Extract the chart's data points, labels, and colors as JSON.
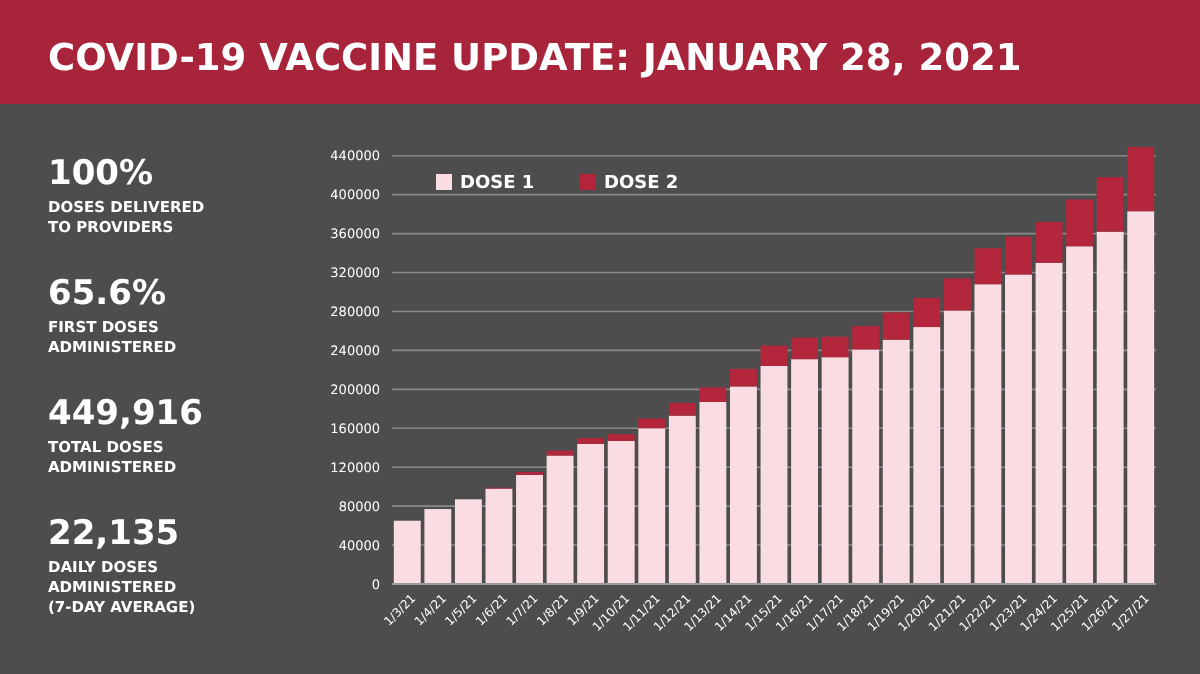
{
  "chart_data": {
    "type": "bar",
    "title": "COVID-19 VACCINE UPDATE: JANUARY 28, 2021",
    "annotations": [
      "100%",
      "DOSES DELIVERED TO PROVIDERS",
      "65.6%",
      "FIRST DOSES ADMINISTERED",
      "449,916",
      "TOTAL DOSES ADMINISTERED",
      "22,135",
      "DAILY DOSES ADMINISTERED (7-DAY AVERAGE)"
    ],
    "categories": [
      "1/3/21",
      "1/4/21",
      "1/5/21",
      "1/6/21",
      "1/7/21",
      "1/8/21",
      "1/9/21",
      "1/10/21",
      "1/11/21",
      "1/12/21",
      "1/13/21",
      "1/14/21",
      "1/15/21",
      "1/16/21",
      "1/17/21",
      "1/18/21",
      "1/19/21",
      "1/20/21",
      "1/21/21",
      "1/22/21",
      "1/23/21",
      "1/24/21",
      "1/25/21",
      "1/26/21",
      "1/27/21"
    ],
    "series": [
      {
        "name": "DOSE 1",
        "color": "#f9dde2",
        "values": [
          65000,
          77000,
          87000,
          98000,
          112000,
          132000,
          144000,
          147000,
          160000,
          173000,
          187000,
          203000,
          224000,
          231000,
          233000,
          241000,
          251000,
          264000,
          281000,
          308000,
          318000,
          330000,
          347000,
          362000,
          383000
        ]
      },
      {
        "name": "DOSE 2",
        "color": "#b3263c",
        "values": [
          0,
          0,
          0,
          1000,
          3000,
          5000,
          6000,
          7000,
          10000,
          13000,
          15000,
          18000,
          21000,
          22000,
          21000,
          24000,
          28000,
          30000,
          33000,
          37000,
          39000,
          42000,
          48000,
          56000,
          66000
        ]
      }
    ],
    "stacked": true,
    "ylim": [
      0,
      450000
    ],
    "yticks": [
      0,
      40000,
      80000,
      120000,
      160000,
      200000,
      240000,
      280000,
      320000,
      360000,
      400000,
      440000
    ],
    "grid": "y",
    "legend": "top left"
  }
}
